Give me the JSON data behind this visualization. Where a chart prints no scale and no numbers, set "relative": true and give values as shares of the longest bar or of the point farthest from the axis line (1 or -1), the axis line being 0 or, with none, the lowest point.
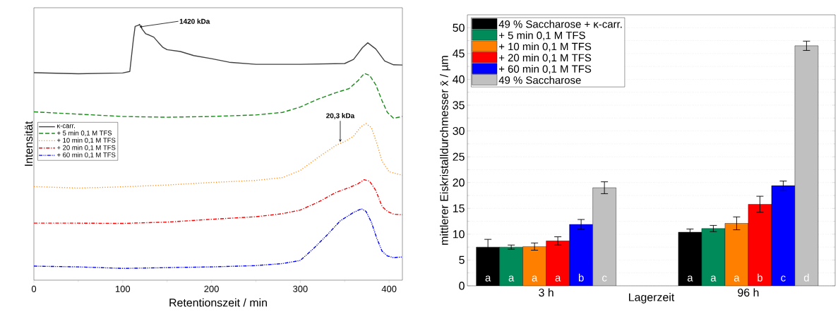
{
  "chart_data": [
    {
      "type": "line",
      "relative": true,
      "xlabel": "Retentionszeit / min",
      "ylabel": "Intensität",
      "xlim": [
        0,
        415
      ],
      "xticks": [
        0,
        100,
        200,
        300,
        400
      ],
      "legend": "left",
      "annotations": [
        {
          "text": "1420 kDa",
          "x": 119,
          "y": 0.99
        },
        {
          "text": "20,3 kDa",
          "x": 345,
          "y": 0.54
        }
      ],
      "series": [
        {
          "name": "κ-carr.",
          "color": "#404040",
          "line_style": "solid",
          "x": [
            0,
            50,
            100,
            108,
            112,
            114,
            118,
            119,
            122,
            126,
            130,
            135,
            140,
            145,
            150,
            165,
            180,
            200,
            220,
            250,
            300,
            350,
            360,
            370,
            376,
            385,
            395,
            405,
            415
          ],
          "values": [
            0.811,
            0.807,
            0.81,
            0.816,
            0.94,
            0.992,
            0.997,
            1.0,
            0.981,
            0.963,
            0.958,
            0.95,
            0.93,
            0.911,
            0.901,
            0.894,
            0.878,
            0.866,
            0.852,
            0.844,
            0.844,
            0.847,
            0.863,
            0.909,
            0.928,
            0.904,
            0.857,
            0.842,
            0.841
          ]
        },
        {
          "name": "+ 5 min 0,1 M TFS",
          "color": "#1a8a1a",
          "line_style": "dashed",
          "x": [
            0,
            50,
            100,
            150,
            200,
            250,
            280,
            300,
            320,
            340,
            355,
            365,
            372,
            378,
            385,
            392,
            398,
            405,
            415
          ],
          "values": [
            0.658,
            0.649,
            0.64,
            0.637,
            0.64,
            0.646,
            0.656,
            0.677,
            0.708,
            0.733,
            0.749,
            0.78,
            0.808,
            0.801,
            0.764,
            0.702,
            0.656,
            0.633,
            0.64
          ]
        },
        {
          "name": "+ 10 min 0,1 M TFS",
          "color": "#ff8c1a",
          "line_style": "dotted",
          "x": [
            0,
            50,
            100,
            150,
            200,
            250,
            280,
            300,
            320,
            340,
            350,
            360,
            368,
            374,
            380,
            386,
            392,
            400,
            415
          ],
          "values": [
            0.366,
            0.36,
            0.365,
            0.372,
            0.382,
            0.39,
            0.401,
            0.429,
            0.48,
            0.527,
            0.542,
            0.563,
            0.599,
            0.612,
            0.597,
            0.537,
            0.465,
            0.424,
            0.41
          ]
        },
        {
          "name": "+ 20 min 0,1 M TFS",
          "color": "#ff0000",
          "line_style": "dashdot",
          "x": [
            0,
            50,
            100,
            150,
            200,
            250,
            280,
            300,
            320,
            340,
            355,
            365,
            372,
            378,
            385,
            392,
            398,
            405,
            415
          ],
          "values": [
            0.223,
            0.223,
            0.222,
            0.227,
            0.238,
            0.248,
            0.26,
            0.274,
            0.305,
            0.343,
            0.362,
            0.377,
            0.393,
            0.387,
            0.351,
            0.289,
            0.269,
            0.258,
            0.256
          ]
        },
        {
          "name": "+ 60 min 0,1 M TFS",
          "color": "#0000ff",
          "line_style": "dashdotdot",
          "x": [
            0,
            50,
            100,
            150,
            200,
            250,
            280,
            300,
            315,
            330,
            345,
            360,
            369,
            374,
            380,
            386,
            392,
            398,
            405,
            415
          ],
          "values": [
            0.055,
            0.052,
            0.046,
            0.049,
            0.052,
            0.057,
            0.065,
            0.077,
            0.124,
            0.176,
            0.232,
            0.265,
            0.279,
            0.269,
            0.227,
            0.165,
            0.114,
            0.095,
            0.088,
            0.091
          ]
        }
      ]
    },
    {
      "type": "bar",
      "xlabel": "Lagerzeit",
      "ylabel": "mittlerer Eiskristalldurchmesser x̄ / µm",
      "categories": [
        "3 h",
        "96 h"
      ],
      "ylim": [
        0,
        52.5
      ],
      "yticks": [
        0,
        5,
        10,
        15,
        20,
        25,
        30,
        35,
        40,
        45,
        50
      ],
      "grid": "y",
      "legend": "top left",
      "series": [
        {
          "name": "49 % Saccharose + κ-carr.",
          "color": "#000000",
          "values": [
            7.5,
            10.4
          ],
          "errors": [
            1.5,
            0.6
          ],
          "value_labels": [
            "a",
            "a"
          ]
        },
        {
          "name": "+ 5 min 0,1 M TFS",
          "color": "#008c5a",
          "values": [
            7.5,
            11.1
          ],
          "errors": [
            0.4,
            0.6
          ],
          "value_labels": [
            "a",
            "a"
          ]
        },
        {
          "name": "+ 10 min 0,1 M TFS",
          "color": "#ff8000",
          "values": [
            7.6,
            12.1
          ],
          "errors": [
            0.7,
            1.25
          ],
          "value_labels": [
            "a",
            "a"
          ]
        },
        {
          "name": "+ 20 min 0,1 M TFS",
          "color": "#ff0000",
          "values": [
            8.7,
            15.8
          ],
          "errors": [
            0.8,
            1.55
          ],
          "value_labels": [
            "a",
            "b"
          ]
        },
        {
          "name": "+ 60 min 0,1 M TFS",
          "color": "#0000ff",
          "values": [
            11.9,
            19.4
          ],
          "errors": [
            0.95,
            0.9
          ],
          "value_labels": [
            "b",
            "c"
          ]
        },
        {
          "name": "49 % Saccharose",
          "color": "#c0c0c0",
          "values": [
            19.0,
            46.5
          ],
          "errors": [
            1.15,
            0.9
          ],
          "value_labels": [
            "c",
            "d"
          ]
        }
      ]
    }
  ]
}
